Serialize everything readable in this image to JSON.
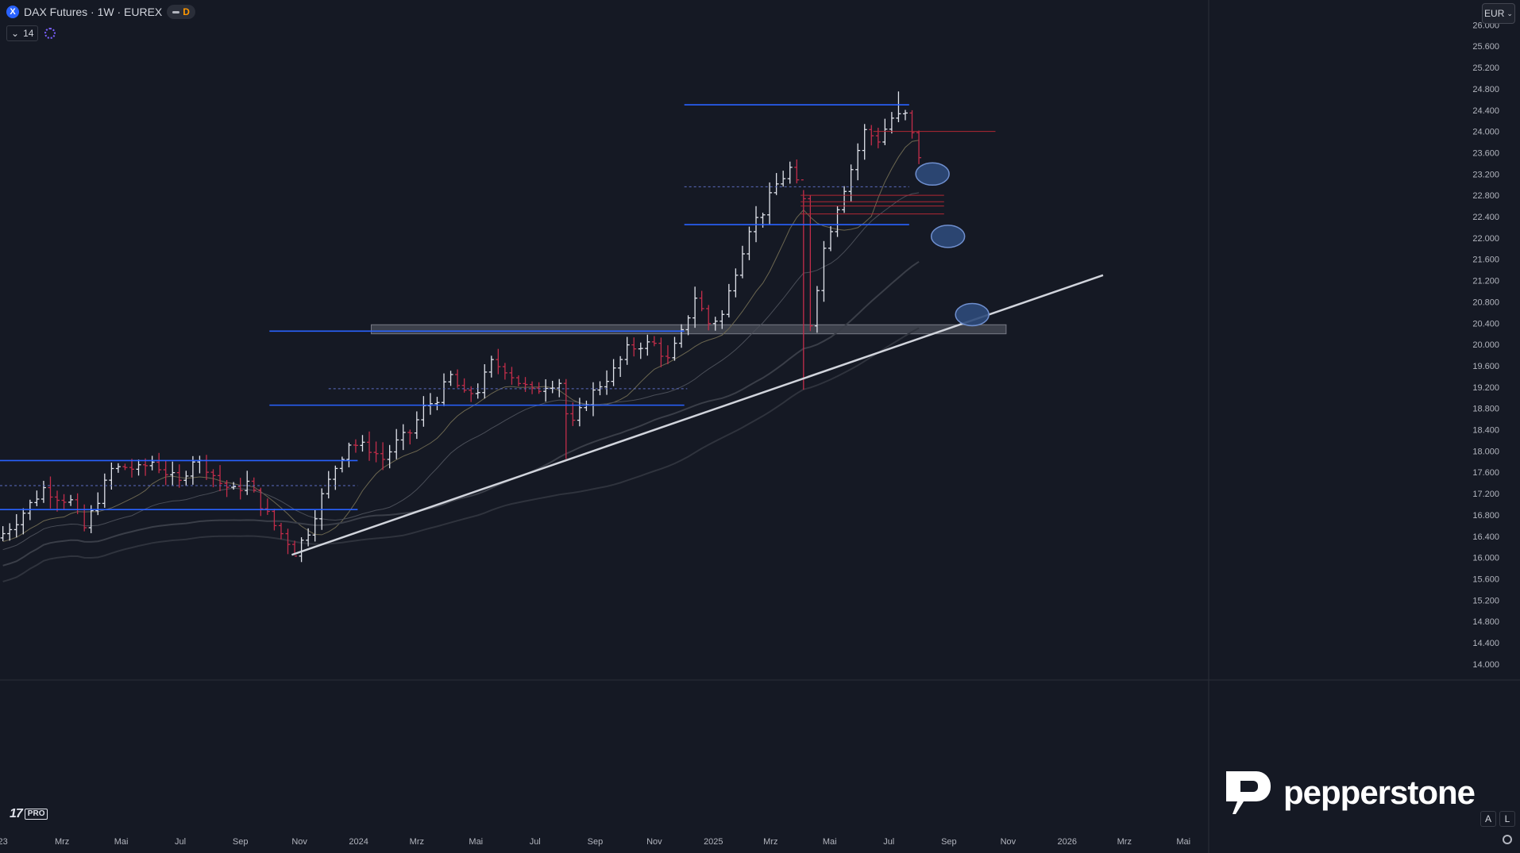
{
  "header": {
    "symbol_icon": "X",
    "title": "DAX Futures · 1W · EUREX",
    "d_badge": "D",
    "indicator_count": "14"
  },
  "currency": "EUR",
  "scale_buttons": [
    "A",
    "L"
  ],
  "brand": "pepperstone",
  "tv_logo": {
    "mark": "17",
    "pro": "PRO"
  },
  "chart_data": {
    "type": "ohlc",
    "timeframe": "1W",
    "ylim": [
      13700,
      26050
    ],
    "y_axis_labels": [
      "26.000",
      "25.600",
      "25.200",
      "24.800",
      "24.400",
      "24.000",
      "23.600",
      "23.200",
      "22.800",
      "22.400",
      "22.000",
      "21.600",
      "21.200",
      "20.800",
      "20.400",
      "20.000",
      "19.600",
      "19.200",
      "18.800",
      "18.400",
      "18.000",
      "17.600",
      "17.200",
      "16.800",
      "16.400",
      "16.000",
      "15.600",
      "15.200",
      "14.800",
      "14.400",
      "14.000"
    ],
    "x_range": [
      "2022-12-27",
      "2026-05-27"
    ],
    "x_axis_labels": [
      {
        "date": "2022-12-30",
        "label": "23"
      },
      {
        "date": "2023-03-01",
        "label": "Mrz"
      },
      {
        "date": "2023-05-01",
        "label": "Mai"
      },
      {
        "date": "2023-07-01",
        "label": "Jul"
      },
      {
        "date": "2023-09-01",
        "label": "Sep"
      },
      {
        "date": "2023-11-01",
        "label": "Nov"
      },
      {
        "date": "2024-01-01",
        "label": "2024"
      },
      {
        "date": "2024-03-01",
        "label": "Mrz"
      },
      {
        "date": "2024-05-01",
        "label": "Mai"
      },
      {
        "date": "2024-07-01",
        "label": "Jul"
      },
      {
        "date": "2024-09-01",
        "label": "Sep"
      },
      {
        "date": "2024-11-01",
        "label": "Nov"
      },
      {
        "date": "2025-01-01",
        "label": "2025"
      },
      {
        "date": "2025-03-01",
        "label": "Mrz"
      },
      {
        "date": "2025-05-01",
        "label": "Mai"
      },
      {
        "date": "2025-07-01",
        "label": "Jul"
      },
      {
        "date": "2025-09-01",
        "label": "Sep"
      },
      {
        "date": "2025-11-01",
        "label": "Nov"
      },
      {
        "date": "2026-01-01",
        "label": "2026"
      },
      {
        "date": "2026-03-01",
        "label": "Mrz"
      },
      {
        "date": "2026-05-01",
        "label": "Mai"
      }
    ],
    "price_path": [
      [
        "2022-12-30",
        16450
      ],
      [
        "2023-01-13",
        16700
      ],
      [
        "2023-01-27",
        17000
      ],
      [
        "2023-02-10",
        17300
      ],
      [
        "2023-02-24",
        17150
      ],
      [
        "2023-03-10",
        17050
      ],
      [
        "2023-03-24",
        16550
      ],
      [
        "2023-04-07",
        17100
      ],
      [
        "2023-04-21",
        17650
      ],
      [
        "2023-05-05",
        17700
      ],
      [
        "2023-05-19",
        17650
      ],
      [
        "2023-06-02",
        17800
      ],
      [
        "2023-06-16",
        17600
      ],
      [
        "2023-06-30",
        17400
      ],
      [
        "2023-07-14",
        17850
      ],
      [
        "2023-07-28",
        17700
      ],
      [
        "2023-08-11",
        17400
      ],
      [
        "2023-08-25",
        17250
      ],
      [
        "2023-09-08",
        17400
      ],
      [
        "2023-09-22",
        17000
      ],
      [
        "2023-10-06",
        16600
      ],
      [
        "2023-10-20",
        16300
      ],
      [
        "2023-10-27",
        16100
      ],
      [
        "2023-11-10",
        16500
      ],
      [
        "2023-11-24",
        17150
      ],
      [
        "2023-12-08",
        17700
      ],
      [
        "2023-12-22",
        18150
      ],
      [
        "2024-01-12",
        18050
      ],
      [
        "2024-01-26",
        17850
      ],
      [
        "2024-02-09",
        18150
      ],
      [
        "2024-02-23",
        18350
      ],
      [
        "2024-03-08",
        18800
      ],
      [
        "2024-03-22",
        19000
      ],
      [
        "2024-04-05",
        19400
      ],
      [
        "2024-04-19",
        19050
      ],
      [
        "2024-05-03",
        19150
      ],
      [
        "2024-05-17",
        19650
      ],
      [
        "2024-05-31",
        19550
      ],
      [
        "2024-06-14",
        19300
      ],
      [
        "2024-06-28",
        19100
      ],
      [
        "2024-07-12",
        19250
      ],
      [
        "2024-07-26",
        19300
      ],
      [
        "2024-08-02",
        18700
      ],
      [
        "2024-08-09",
        18500
      ],
      [
        "2024-08-23",
        18950
      ],
      [
        "2024-09-06",
        19250
      ],
      [
        "2024-09-20",
        19500
      ],
      [
        "2024-10-04",
        19900
      ],
      [
        "2024-10-18",
        20000
      ],
      [
        "2024-11-01",
        20000
      ],
      [
        "2024-11-15",
        19700
      ],
      [
        "2024-11-29",
        20200
      ],
      [
        "2024-12-13",
        20900
      ],
      [
        "2024-12-27",
        20400
      ],
      [
        "2025-01-10",
        20550
      ],
      [
        "2025-01-24",
        21400
      ],
      [
        "2025-02-07",
        22200
      ],
      [
        "2025-02-21",
        22500
      ],
      [
        "2025-03-07",
        23000
      ],
      [
        "2025-03-21",
        23300
      ],
      [
        "2025-04-04",
        22700
      ],
      [
        "2025-04-11",
        20400
      ],
      [
        "2025-04-25",
        21800
      ],
      [
        "2025-05-09",
        22600
      ],
      [
        "2025-05-23",
        23300
      ],
      [
        "2025-06-06",
        24000
      ],
      [
        "2025-06-20",
        23850
      ],
      [
        "2025-07-04",
        24250
      ],
      [
        "2025-07-18",
        24300
      ],
      [
        "2025-08-01",
        23550
      ]
    ],
    "horizontal_levels": [
      {
        "from": "2024-12-02",
        "to": "2025-07-22",
        "price": 24500,
        "color": "#2962ff"
      },
      {
        "from": "2024-12-02",
        "to": "2025-07-22",
        "price": 22250,
        "color": "#2962ff"
      },
      {
        "from": "2023-10-01",
        "to": "2024-12-02",
        "price": 18860,
        "color": "#2962ff"
      },
      {
        "from": "2023-10-01",
        "to": "2024-12-02",
        "price": 20250,
        "color": "#2962ff"
      },
      {
        "from": "2022-12-27",
        "to": "2023-12-31",
        "price": 17820,
        "color": "#2962ff"
      },
      {
        "from": "2022-12-27",
        "to": "2023-12-31",
        "price": 16900,
        "color": "#2962ff"
      },
      {
        "from": "2025-06-15",
        "to": "2025-10-19",
        "price": 24000,
        "color": "#b22833"
      },
      {
        "from": "2025-04-01",
        "to": "2025-08-27",
        "price": 22800,
        "color": "#b22833"
      },
      {
        "from": "2025-04-01",
        "to": "2025-08-27",
        "price": 22680,
        "color": "#b22833"
      },
      {
        "from": "2025-04-01",
        "to": "2025-08-27",
        "price": 22600,
        "color": "#b22833"
      },
      {
        "from": "2025-04-01",
        "to": "2025-08-27",
        "price": 22450,
        "color": "#b22833"
      }
    ],
    "dashed_levels": [
      {
        "from": "2022-12-27",
        "to": "2023-12-31",
        "price": 17350
      },
      {
        "from": "2023-12-01",
        "to": "2024-12-05",
        "price": 19170
      },
      {
        "from": "2024-12-02",
        "to": "2025-07-22",
        "price": 22960
      }
    ],
    "zone": {
      "from": "2024-01-14",
      "to": "2025-10-30",
      "low": 20200,
      "high": 20370
    },
    "trendline": [
      [
        "2023-10-24",
        16050
      ],
      [
        "2026-02-07",
        21300
      ]
    ],
    "circles": [
      {
        "date": "2025-08-15",
        "price": 23200
      },
      {
        "date": "2025-08-31",
        "price": 22030
      },
      {
        "date": "2025-09-25",
        "price": 20560
      }
    ]
  }
}
